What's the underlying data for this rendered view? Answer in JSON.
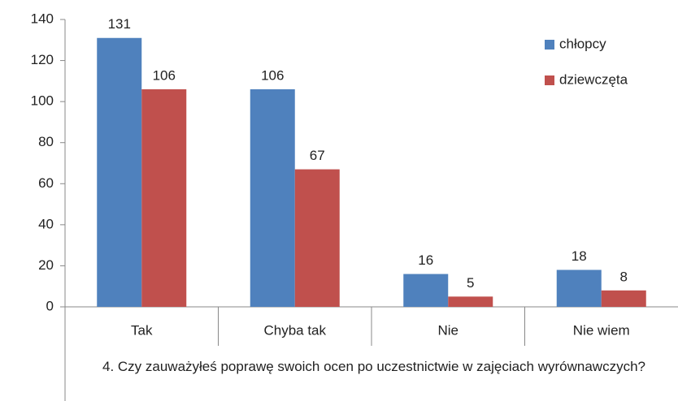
{
  "chart_data": {
    "type": "bar",
    "x_label": "4. Czy zauważyłeś poprawę swoich ocen po uczestnictwie w zajęciach wyrównawczych?",
    "categories": [
      "Tak",
      "Chyba tak",
      "Nie",
      "Nie wiem"
    ],
    "series": [
      {
        "name": "chłopcy",
        "color": "#4f81bd",
        "values": [
          131,
          106,
          16,
          18
        ]
      },
      {
        "name": "dziewczęta",
        "color": "#c0504d",
        "values": [
          106,
          67,
          5,
          8
        ]
      }
    ],
    "ylim": [
      0,
      140
    ],
    "yticks": [
      0,
      20,
      40,
      60,
      80,
      100,
      120,
      140
    ],
    "grid": false,
    "legend": "upper right"
  }
}
